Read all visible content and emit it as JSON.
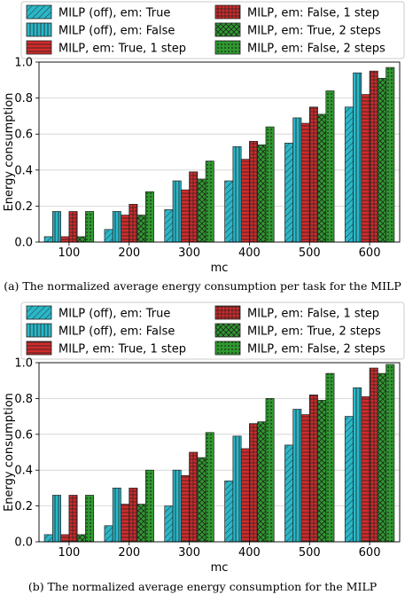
{
  "colors": {
    "cyan": "#2ab7c8",
    "red": "#d12b2b",
    "green": "#2e9a2e",
    "edge": "#222222"
  },
  "chart_data": [
    {
      "type": "bar",
      "caption": "(a) The normalized average energy consumption per task for the MILP",
      "xlabel": "mc",
      "ylabel": "Energy consumption",
      "ylim": [
        0,
        1.0
      ],
      "yticks": [
        "0.0",
        "0.2",
        "0.4",
        "0.6",
        "0.8",
        "1.0"
      ],
      "categories": [
        "100",
        "200",
        "300",
        "400",
        "500",
        "600"
      ],
      "grid": true,
      "legend_position": "top",
      "series": [
        {
          "name": "MILP (off), em: True",
          "color": "cyan",
          "pattern": "diag",
          "values": [
            0.03,
            0.07,
            0.18,
            0.34,
            0.55,
            0.75
          ]
        },
        {
          "name": "MILP (off), em: False",
          "color": "cyan",
          "pattern": "vert",
          "values": [
            0.17,
            0.17,
            0.34,
            0.53,
            0.69,
            0.94
          ]
        },
        {
          "name": "MILP, em: True, 1 step",
          "color": "red",
          "pattern": "horiz",
          "values": [
            0.03,
            0.15,
            0.29,
            0.46,
            0.66,
            0.82
          ]
        },
        {
          "name": "MILP, em: False, 1 step",
          "color": "red",
          "pattern": "grid",
          "values": [
            0.17,
            0.21,
            0.39,
            0.56,
            0.75,
            0.95
          ]
        },
        {
          "name": "MILP, em: True, 2 steps",
          "color": "green",
          "pattern": "cross",
          "values": [
            0.03,
            0.15,
            0.35,
            0.54,
            0.71,
            0.91
          ]
        },
        {
          "name": "MILP, em: False, 2 steps",
          "color": "green",
          "pattern": "dots",
          "values": [
            0.17,
            0.28,
            0.45,
            0.64,
            0.84,
            0.97
          ]
        }
      ]
    },
    {
      "type": "bar",
      "caption": "(b) The normalized average energy consumption for the MILP",
      "xlabel": "mc",
      "ylabel": "Energy consumption",
      "ylim": [
        0,
        1.0
      ],
      "yticks": [
        "0.0",
        "0.2",
        "0.4",
        "0.6",
        "0.8",
        "1.0"
      ],
      "categories": [
        "100",
        "200",
        "300",
        "400",
        "500",
        "600"
      ],
      "grid": true,
      "legend_position": "top",
      "series": [
        {
          "name": "MILP (off), em: True",
          "color": "cyan",
          "pattern": "diag",
          "values": [
            0.04,
            0.09,
            0.2,
            0.34,
            0.54,
            0.7
          ]
        },
        {
          "name": "MILP (off), em: False",
          "color": "cyan",
          "pattern": "vert",
          "values": [
            0.26,
            0.3,
            0.4,
            0.59,
            0.74,
            0.86
          ]
        },
        {
          "name": "MILP, em: True, 1 step",
          "color": "red",
          "pattern": "horiz",
          "values": [
            0.04,
            0.21,
            0.37,
            0.52,
            0.71,
            0.81
          ]
        },
        {
          "name": "MILP, em: False, 1 step",
          "color": "red",
          "pattern": "grid",
          "values": [
            0.26,
            0.3,
            0.5,
            0.66,
            0.82,
            0.97
          ]
        },
        {
          "name": "MILP, em: True, 2 steps",
          "color": "green",
          "pattern": "cross",
          "values": [
            0.04,
            0.21,
            0.47,
            0.67,
            0.79,
            0.94
          ]
        },
        {
          "name": "MILP, em: False, 2 steps",
          "color": "green",
          "pattern": "dots",
          "values": [
            0.26,
            0.4,
            0.61,
            0.8,
            0.94,
            0.99
          ]
        }
      ]
    }
  ]
}
